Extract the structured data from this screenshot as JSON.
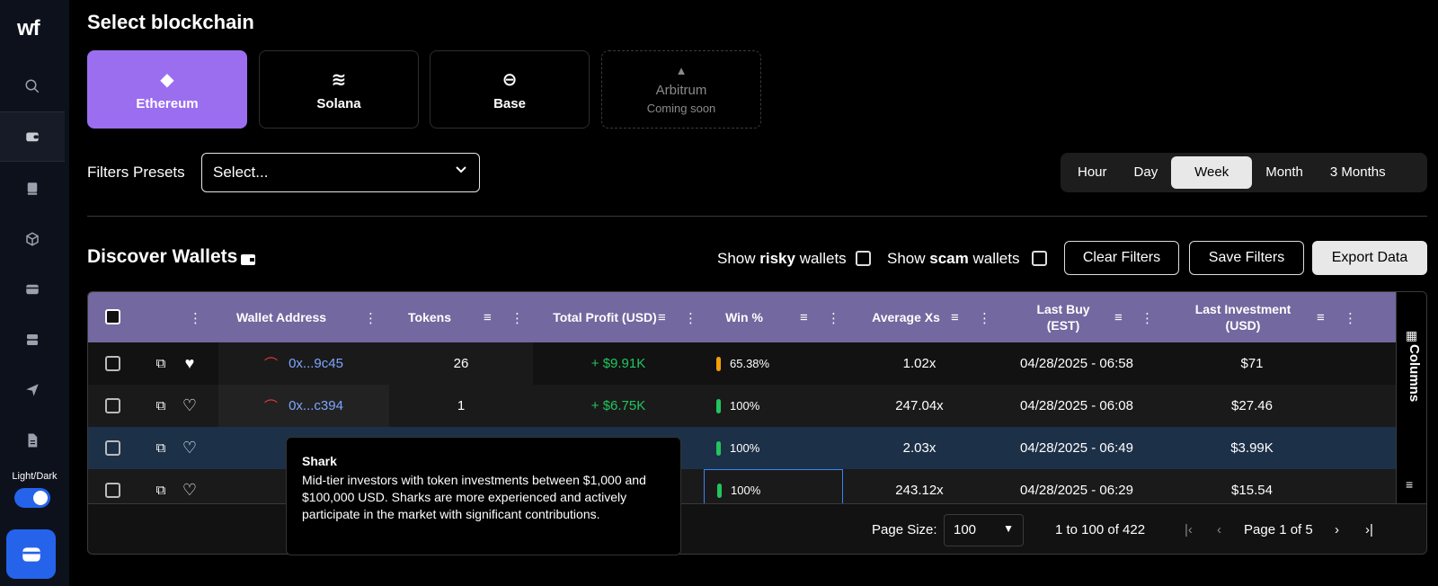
{
  "sidebar": {
    "logo": "wf",
    "theme_label": "Light/Dark",
    "icons": [
      "search-icon",
      "wallet-icon",
      "book-icon",
      "cube-icon",
      "card-icon",
      "server-icon",
      "send-icon",
      "document-icon"
    ]
  },
  "page": {
    "title": "Select blockchain"
  },
  "chains": [
    {
      "label": "Ethereum",
      "icon": "◆"
    },
    {
      "label": "Solana",
      "icon": "≋"
    },
    {
      "label": "Base",
      "icon": "⊖"
    },
    {
      "label": "Arbitrum",
      "icon": "▲",
      "sublabel": "Coming soon"
    }
  ],
  "filters": {
    "label": "Filters Presets",
    "placeholder": "Select..."
  },
  "periods": [
    "Hour",
    "Day",
    "Week",
    "Month",
    "3 Months"
  ],
  "selected_period": "Week",
  "discover": {
    "title": "Discover Wallets",
    "show_prefix": "Show",
    "risky": "risky",
    "scam": "scam",
    "wallets_suffix": "wallets",
    "clear": "Clear Filters",
    "save": "Save Filters",
    "export": "Export Data"
  },
  "table": {
    "headers": {
      "wallet": "Wallet Address",
      "tokens": "Tokens",
      "profit": "Total Profit (USD)",
      "win": "Win %",
      "avgx": "Average Xs",
      "lastbuy": "Last Buy (EST)",
      "lastinv": "Last Investment (USD)"
    },
    "rows": [
      {
        "address": "0x...9c45",
        "tokens": "26",
        "profit": "+ $9.91K",
        "win": "65.38%",
        "win_color": "#f59e0b",
        "avgx": "1.02x",
        "lastbuy": "04/28/2025 - 06:58",
        "lastinv": "$71"
      },
      {
        "address": "0x...c394",
        "tokens": "1",
        "profit": "+ $6.75K",
        "win": "100%",
        "win_color": "#22c55e",
        "avgx": "247.04x",
        "lastbuy": "04/28/2025 - 06:08",
        "lastinv": "$27.46"
      },
      {
        "address": "",
        "tokens": "",
        "profit": "",
        "win": "100%",
        "win_color": "#22c55e",
        "avgx": "2.03x",
        "lastbuy": "04/28/2025 - 06:49",
        "lastinv": "$3.99K"
      },
      {
        "address": "",
        "tokens": "",
        "profit": "",
        "win": "100%",
        "win_color": "#22c55e",
        "avgx": "243.12x",
        "lastbuy": "04/28/2025 - 06:29",
        "lastinv": "$15.54"
      }
    ],
    "columns_label": "Columns"
  },
  "pager": {
    "page_size_label": "Page Size:",
    "page_size": "100",
    "range": "1 to 100 of 422",
    "page": "Page 1 of 5"
  },
  "tooltip": {
    "title": "Shark",
    "body": "Mid-tier investors with token investments between $1,000 and $100,000 USD. Sharks are more experienced and actively participate in the market with significant contributions."
  }
}
